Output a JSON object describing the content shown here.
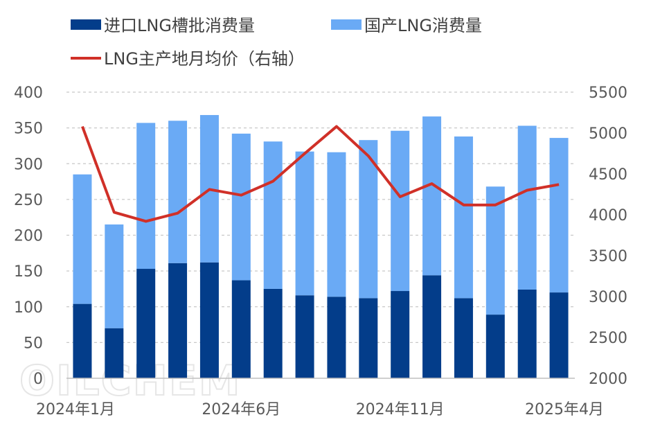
{
  "watermark": "OILCHEM",
  "chart_data": {
    "type": "bar",
    "categories": [
      "2024年1月",
      "2024年2月",
      "2024年3月",
      "2024年4月",
      "2024年5月",
      "2024年6月",
      "2024年7月",
      "2024年8月",
      "2024年9月",
      "2024年10月",
      "2024年11月",
      "2024年12月",
      "2025年1月",
      "2025年2月",
      "2025年3月",
      "2025年4月"
    ],
    "x_tick_labels": [
      "2024年1月",
      "2024年6月",
      "2024年11月",
      "2025年4月"
    ],
    "stacked": true,
    "series": [
      {
        "name": "进口LNG槽批消费量",
        "type": "bar",
        "axis": "left",
        "color": "#033d8a",
        "values": [
          104,
          70,
          153,
          161,
          162,
          137,
          125,
          116,
          114,
          112,
          122,
          144,
          112,
          89,
          124,
          120
        ]
      },
      {
        "name": "国产LNG消费量",
        "type": "bar",
        "axis": "left",
        "color": "#6aaaf5",
        "values": [
          181,
          145,
          204,
          199,
          206,
          205,
          206,
          201,
          202,
          221,
          224,
          222,
          226,
          179,
          229,
          216
        ]
      },
      {
        "name": "LNG主产地月均价（右轴）",
        "type": "line",
        "axis": "right",
        "color": "#d03028",
        "values": [
          5080,
          4030,
          3920,
          4020,
          4310,
          4240,
          4410,
          4750,
          5080,
          4720,
          4220,
          4380,
          4120,
          4120,
          4300,
          4370
        ]
      }
    ],
    "ylim_left": [
      0,
      400
    ],
    "yticks_left": [
      "0",
      "50",
      "100",
      "150",
      "200",
      "250",
      "300",
      "350",
      "400"
    ],
    "ylim_right": [
      2000,
      5500
    ],
    "yticks_right": [
      "2000",
      "2500",
      "3000",
      "3500",
      "4000",
      "4500",
      "5000",
      "5500"
    ],
    "grid": "horizontal dashed",
    "legend_position": "top"
  }
}
